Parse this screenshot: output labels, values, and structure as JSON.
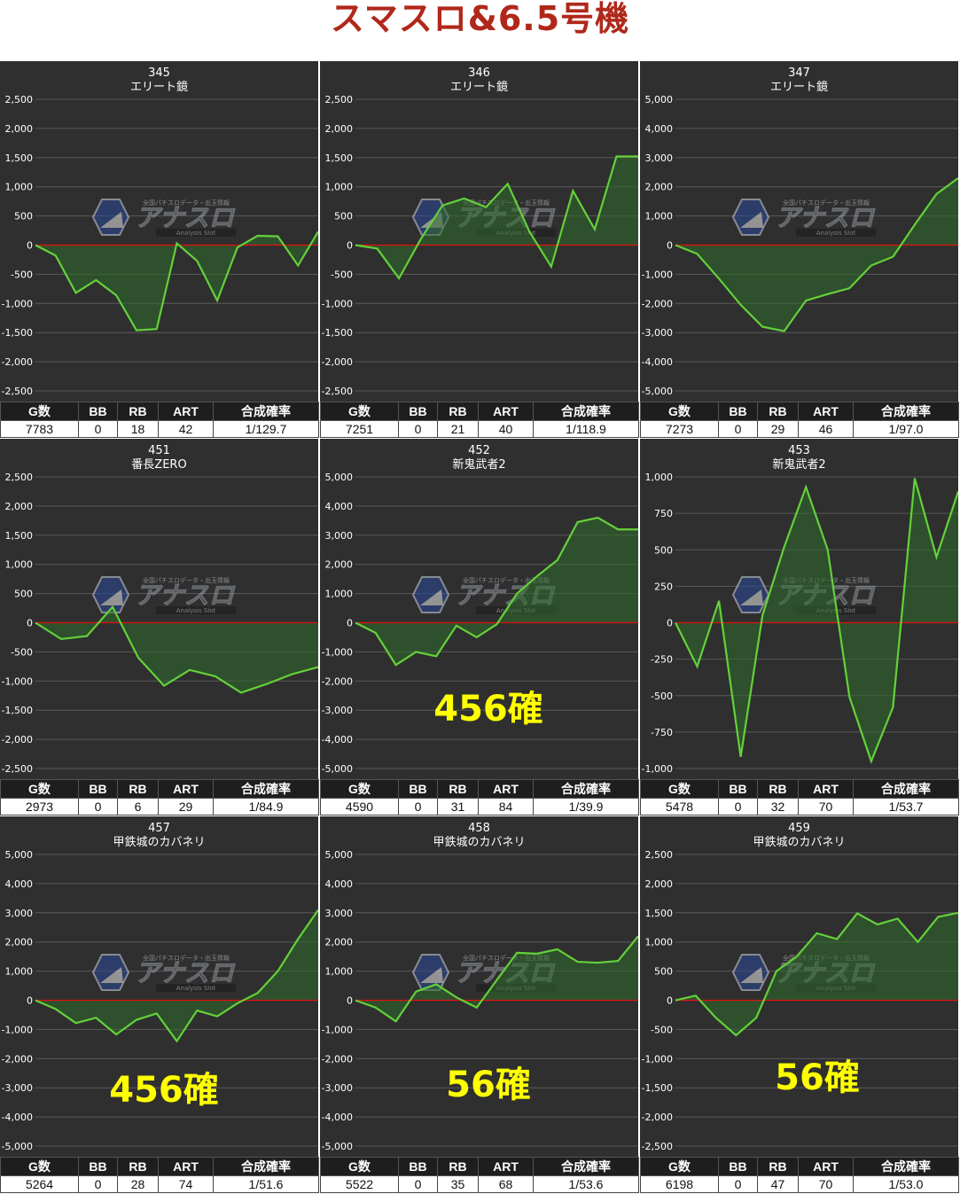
{
  "page": {
    "title": "スマスロ&6.5号機"
  },
  "watermark": {
    "brand": "アナスロ",
    "tagline": "全国パチスロデータ・出玉情報",
    "sub": "Analysis Slot"
  },
  "colors": {
    "title": "#b0281a",
    "panel_bg": "#2f2f2f",
    "line": "#63d13a",
    "fill": "#2f6b2a",
    "zero_line": "#e01010",
    "callout": "#ffff00"
  },
  "stats_headers": [
    "G数",
    "BB",
    "RB",
    "ART",
    "合成確率"
  ],
  "chart_data": [
    {
      "type": "area",
      "machine_no": "345",
      "machine_name": "エリート鏡",
      "ylim": [
        -2500,
        2500
      ],
      "yticks": [
        2500,
        2000,
        1500,
        1000,
        500,
        0,
        -500,
        -1000,
        -1500,
        -2000,
        -2500
      ],
      "values": [
        0,
        -180,
        -820,
        -600,
        -860,
        -1460,
        -1440,
        30,
        -270,
        -950,
        -40,
        160,
        150,
        -350,
        230
      ],
      "stats": [
        "7783",
        "0",
        "18",
        "42",
        "1/129.7"
      ],
      "callout": ""
    },
    {
      "type": "area",
      "machine_no": "346",
      "machine_name": "エリート鏡",
      "ylim": [
        -2500,
        2500
      ],
      "yticks": [
        2500,
        2000,
        1500,
        1000,
        500,
        0,
        -500,
        -1000,
        -1500,
        -2000,
        -2500
      ],
      "values": [
        0,
        -60,
        -570,
        100,
        680,
        800,
        650,
        1050,
        230,
        -370,
        930,
        270,
        1520,
        1520
      ],
      "stats": [
        "7251",
        "0",
        "21",
        "40",
        "1/118.9"
      ],
      "callout": ""
    },
    {
      "type": "area",
      "machine_no": "347",
      "machine_name": "エリート鏡",
      "ylim": [
        -5000,
        5000
      ],
      "yticks": [
        5000,
        4000,
        3000,
        2000,
        1000,
        0,
        -1000,
        -2000,
        -3000,
        -4000,
        -5000
      ],
      "values": [
        0,
        -300,
        -1150,
        -2050,
        -2800,
        -2950,
        -1900,
        -1680,
        -1480,
        -700,
        -400,
        700,
        1750,
        2300
      ],
      "stats": [
        "7273",
        "0",
        "29",
        "46",
        "1/97.0"
      ],
      "callout": ""
    },
    {
      "type": "area",
      "machine_no": "451",
      "machine_name": "番長ZERO",
      "ylim": [
        -2500,
        2500
      ],
      "yticks": [
        2500,
        2000,
        1500,
        1000,
        500,
        0,
        -500,
        -1000,
        -1500,
        -2000,
        -2500
      ],
      "values": [
        0,
        -280,
        -230,
        270,
        -600,
        -1080,
        -810,
        -920,
        -1200,
        -1050,
        -880,
        -760
      ],
      "stats": [
        "2973",
        "0",
        "6",
        "29",
        "1/84.9"
      ],
      "callout": ""
    },
    {
      "type": "area",
      "machine_no": "452",
      "machine_name": "新鬼武者2",
      "ylim": [
        -5000,
        5000
      ],
      "yticks": [
        5000,
        4000,
        3000,
        2000,
        1000,
        0,
        -1000,
        -2000,
        -3000,
        -4000,
        -5000
      ],
      "values": [
        0,
        -350,
        -1450,
        -1000,
        -1150,
        -100,
        -500,
        -50,
        1000,
        1600,
        2150,
        3450,
        3600,
        3200,
        3200
      ],
      "stats": [
        "4590",
        "0",
        "31",
        "84",
        "1/39.9"
      ],
      "callout": "456確"
    },
    {
      "type": "area",
      "machine_no": "453",
      "machine_name": "新鬼武者2",
      "ylim": [
        -1000,
        1000
      ],
      "yticks": [
        1000,
        750,
        500,
        250,
        0,
        -250,
        -500,
        -750,
        -1000
      ],
      "values": [
        0,
        -300,
        150,
        -920,
        50,
        520,
        930,
        500,
        -510,
        -950,
        -580,
        990,
        450,
        900
      ],
      "stats": [
        "5478",
        "0",
        "32",
        "70",
        "1/53.7"
      ],
      "callout": ""
    },
    {
      "type": "area",
      "machine_no": "457",
      "machine_name": "甲鉄城のカバネリ",
      "ylim": [
        -5000,
        5000
      ],
      "yticks": [
        5000,
        4000,
        3000,
        2000,
        1000,
        0,
        -1000,
        -2000,
        -3000,
        -4000,
        -5000
      ],
      "values": [
        0,
        -300,
        -780,
        -600,
        -1170,
        -670,
        -450,
        -1400,
        -350,
        -550,
        -100,
        250,
        1000,
        2100,
        3100
      ],
      "stats": [
        "5264",
        "0",
        "28",
        "74",
        "1/51.6"
      ],
      "callout": "456確"
    },
    {
      "type": "area",
      "machine_no": "458",
      "machine_name": "甲鉄城のカバネリ",
      "ylim": [
        -5000,
        5000
      ],
      "yticks": [
        5000,
        4000,
        3000,
        2000,
        1000,
        0,
        -1000,
        -2000,
        -3000,
        -4000,
        -5000
      ],
      "values": [
        0,
        -250,
        -720,
        300,
        550,
        100,
        -250,
        700,
        1630,
        1600,
        1750,
        1320,
        1290,
        1350,
        2200
      ],
      "stats": [
        "5522",
        "0",
        "35",
        "68",
        "1/53.6"
      ],
      "callout": "56確"
    },
    {
      "type": "area",
      "machine_no": "459",
      "machine_name": "甲鉄城のカバネリ",
      "ylim": [
        -2500,
        2500
      ],
      "yticks": [
        2500,
        2000,
        1500,
        1000,
        500,
        0,
        -500,
        -1000,
        -1500,
        -2000,
        -2500
      ],
      "values": [
        0,
        80,
        -300,
        -600,
        -300,
        500,
        750,
        1150,
        1050,
        1490,
        1300,
        1400,
        1000,
        1430,
        1500
      ],
      "stats": [
        "6198",
        "0",
        "47",
        "70",
        "1/53.0"
      ],
      "callout": "56確"
    }
  ]
}
